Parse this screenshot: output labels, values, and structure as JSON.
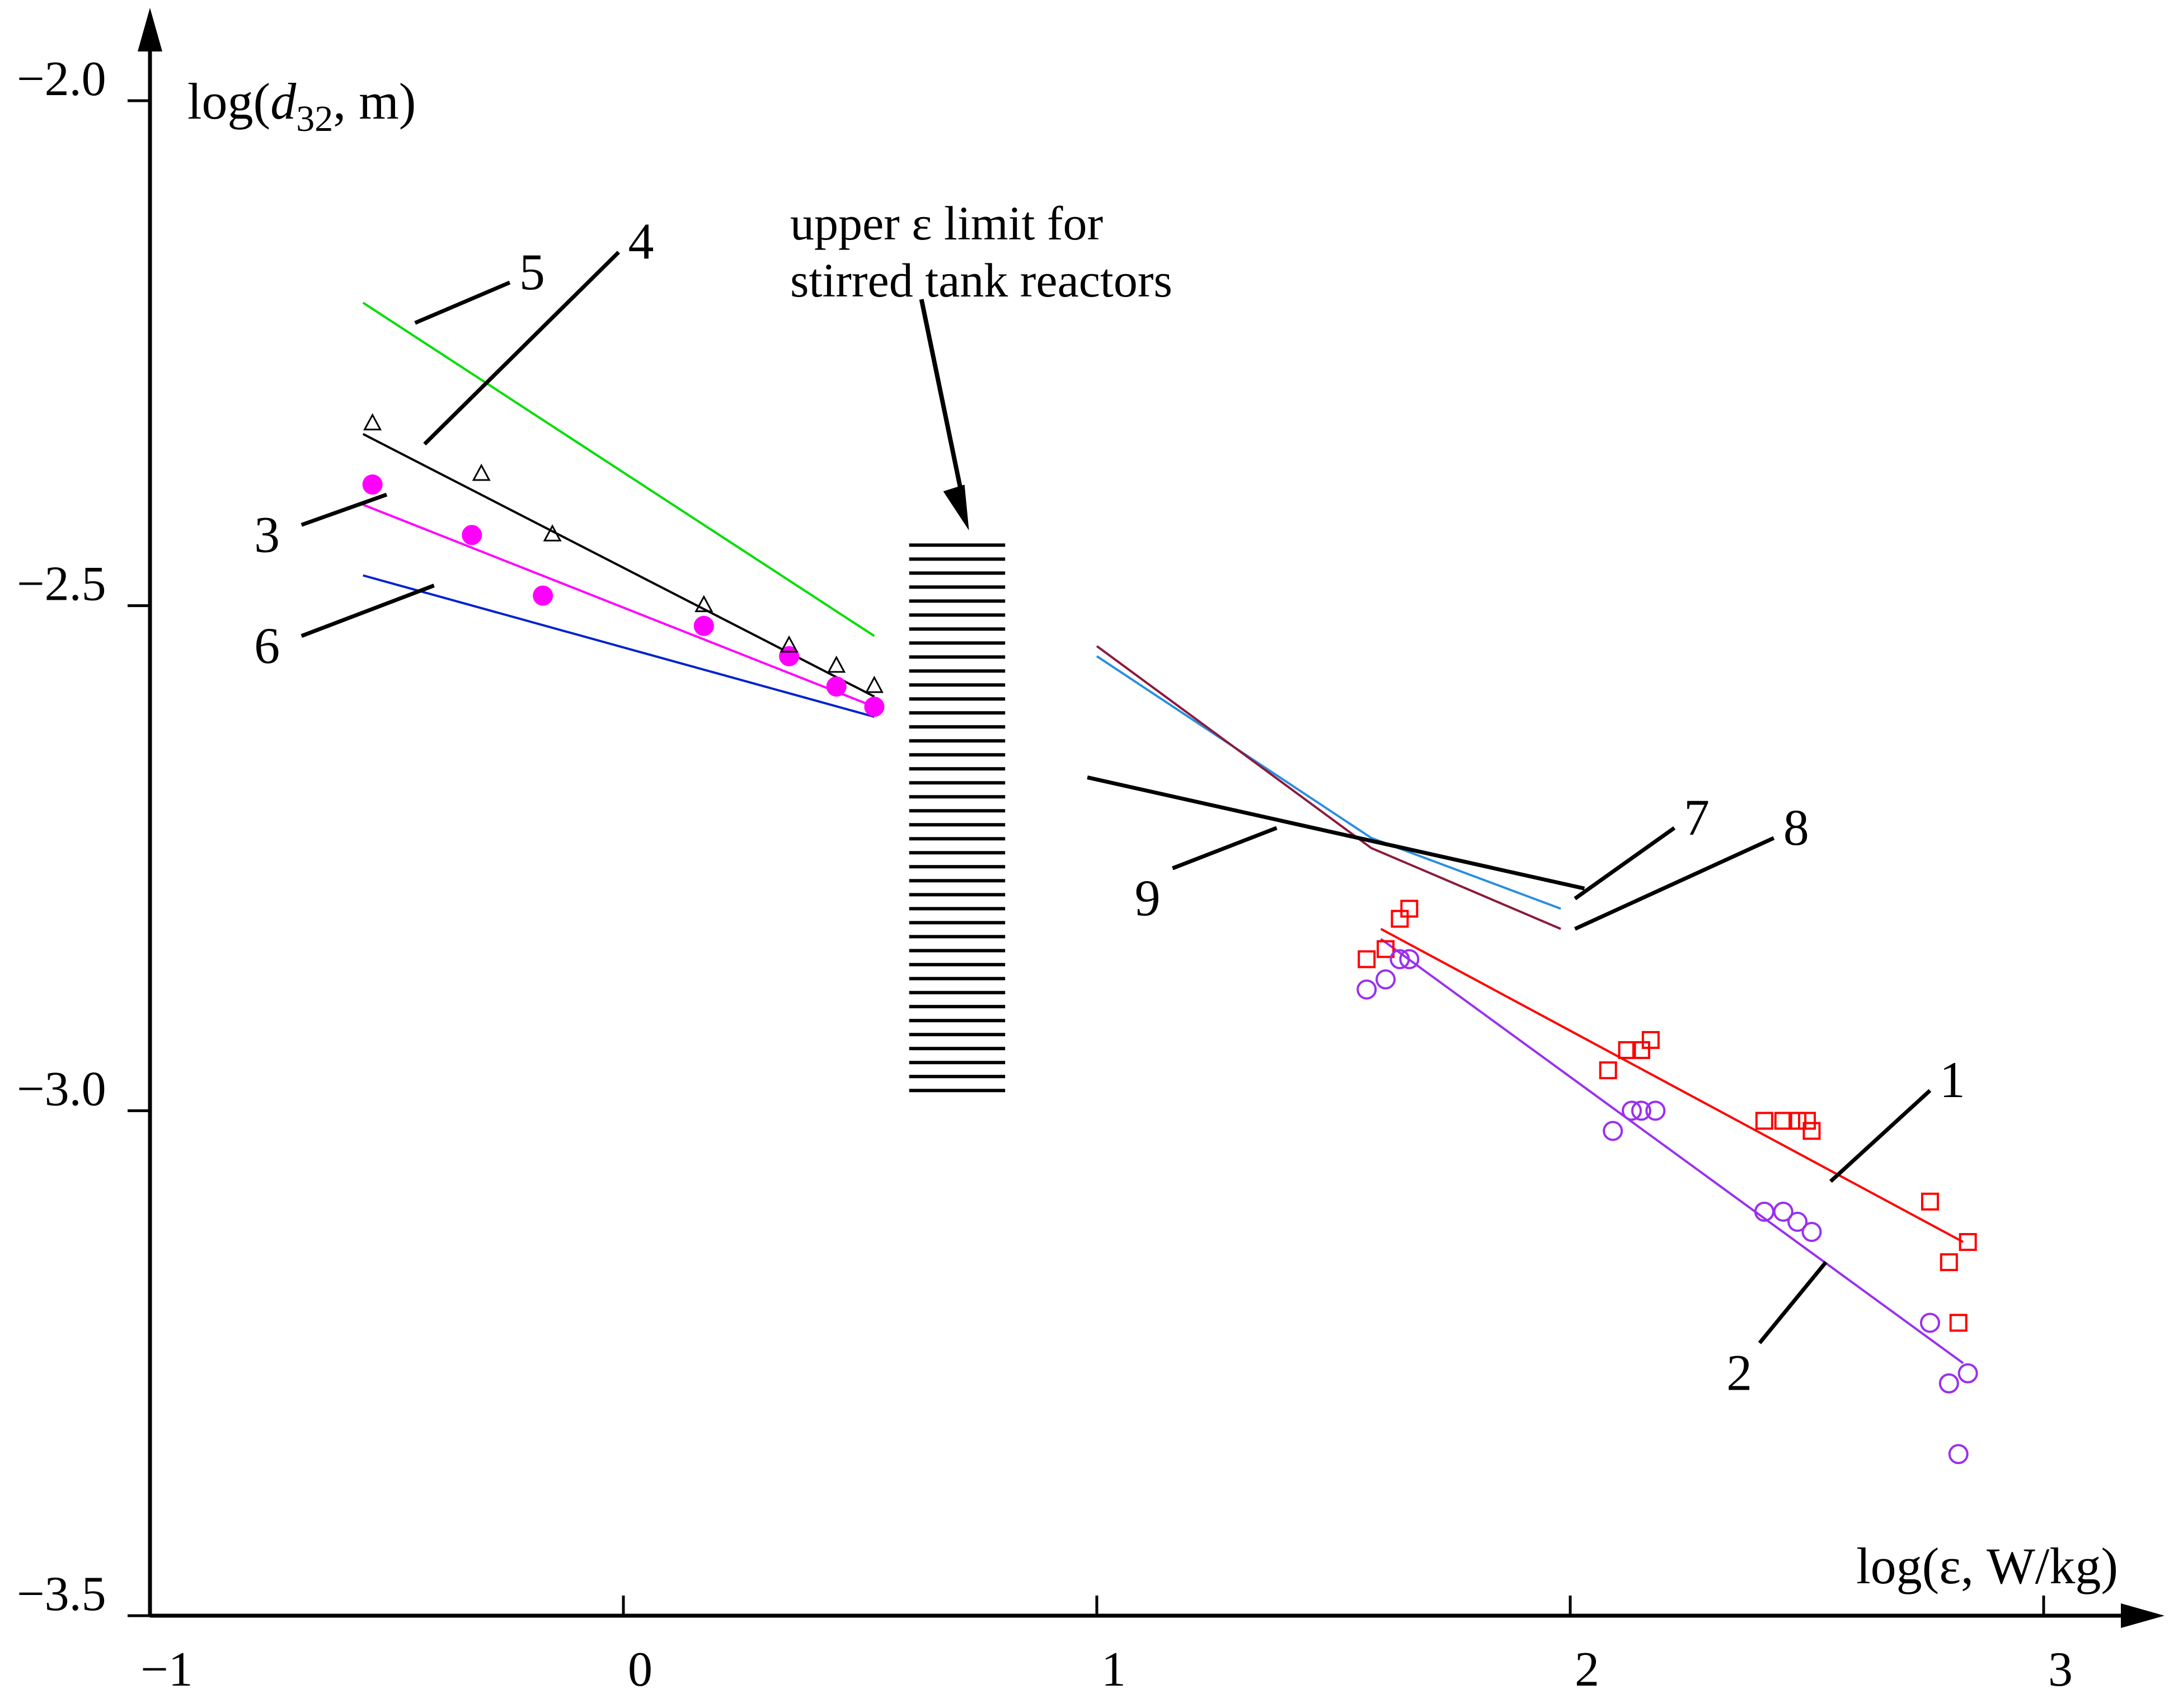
{
  "chart_data": {
    "type": "scatter",
    "title": "",
    "xlabel_text": "log(ε, W/kg)",
    "ylabel": {
      "prefix": "log(",
      "var": "d",
      "sub": "32",
      "suffix": ", m)"
    },
    "xlim": [
      -1,
      3.2
    ],
    "ylim": [
      -3.5,
      -1.95
    ],
    "x_ticks": [
      {
        "value": -1,
        "label": "−1"
      },
      {
        "value": 0,
        "label": "0"
      },
      {
        "value": 1,
        "label": "1"
      },
      {
        "value": 2,
        "label": "2"
      },
      {
        "value": 3,
        "label": "3"
      }
    ],
    "y_ticks": [
      {
        "value": -2.0,
        "label": "−2.0"
      },
      {
        "value": -2.5,
        "label": "−2.5"
      },
      {
        "value": -3.0,
        "label": "−3.0"
      },
      {
        "value": -3.5,
        "label": "−3.5"
      }
    ],
    "grid": false,
    "legend": "none",
    "annotation": {
      "lines": [
        "upper   ε   limit   for",
        "stirred tank reactors"
      ],
      "hatch": {
        "x_range": [
          0.58,
          0.83
        ],
        "y_range": [
          -2.98,
          -2.44
        ],
        "count": 40
      },
      "arrow_from": [
        0.6,
        -2.25
      ],
      "arrow_to": [
        0.73,
        -2.43
      ]
    },
    "series": [
      {
        "name": "1",
        "color": "#ff0000",
        "marker": "square-open",
        "fit": [
          [
            1.6,
            -2.82
          ],
          [
            2.83,
            -3.13
          ]
        ],
        "points": [
          [
            1.57,
            -2.85
          ],
          [
            1.61,
            -2.84
          ],
          [
            1.64,
            -2.81
          ],
          [
            1.66,
            -2.8
          ],
          [
            2.08,
            -2.96
          ],
          [
            2.12,
            -2.94
          ],
          [
            2.15,
            -2.94
          ],
          [
            2.17,
            -2.93
          ],
          [
            2.41,
            -3.01
          ],
          [
            2.45,
            -3.01
          ],
          [
            2.48,
            -3.01
          ],
          [
            2.5,
            -3.01
          ],
          [
            2.51,
            -3.02
          ],
          [
            2.76,
            -3.09
          ],
          [
            2.8,
            -3.15
          ],
          [
            2.84,
            -3.13
          ],
          [
            2.82,
            -3.21
          ]
        ]
      },
      {
        "name": "2",
        "color": "#9a2ff0",
        "marker": "circle-open",
        "fit": [
          [
            1.6,
            -2.83
          ],
          [
            2.83,
            -3.25
          ]
        ],
        "points": [
          [
            1.57,
            -2.88
          ],
          [
            1.61,
            -2.87
          ],
          [
            1.64,
            -2.85
          ],
          [
            1.66,
            -2.85
          ],
          [
            2.09,
            -3.02
          ],
          [
            2.13,
            -3.0
          ],
          [
            2.15,
            -3.0
          ],
          [
            2.18,
            -3.0
          ],
          [
            2.41,
            -3.1
          ],
          [
            2.45,
            -3.1
          ],
          [
            2.48,
            -3.11
          ],
          [
            2.51,
            -3.12
          ],
          [
            2.76,
            -3.21
          ],
          [
            2.8,
            -3.27
          ],
          [
            2.84,
            -3.26
          ],
          [
            2.82,
            -3.34
          ]
        ]
      },
      {
        "name": "3",
        "color": "#ff00ff",
        "marker": "circle-filled",
        "fit": [
          [
            -0.55,
            -2.4
          ],
          [
            0.53,
            -2.6
          ]
        ],
        "points": [
          [
            -0.53,
            -2.38
          ],
          [
            -0.32,
            -2.43
          ],
          [
            -0.17,
            -2.49
          ],
          [
            0.17,
            -2.52
          ],
          [
            0.35,
            -2.55
          ],
          [
            0.45,
            -2.58
          ],
          [
            0.53,
            -2.6
          ]
        ]
      },
      {
        "name": "4",
        "color": "#000000",
        "marker": "triangle-open",
        "fit": [
          [
            -0.55,
            -2.33
          ],
          [
            0.53,
            -2.59
          ]
        ],
        "points": [
          [
            -0.53,
            -2.32
          ],
          [
            -0.3,
            -2.37
          ],
          [
            -0.15,
            -2.43
          ],
          [
            0.17,
            -2.5
          ],
          [
            0.35,
            -2.54
          ],
          [
            0.45,
            -2.56
          ],
          [
            0.53,
            -2.58
          ]
        ]
      },
      {
        "name": "5",
        "color": "#00dd00",
        "marker": "none",
        "fit": [
          [
            -0.55,
            -2.2
          ],
          [
            0.53,
            -2.53
          ]
        ],
        "points": []
      },
      {
        "name": "6",
        "color": "#0022cc",
        "marker": "none",
        "fit": [
          [
            -0.55,
            -2.47
          ],
          [
            0.53,
            -2.61
          ]
        ],
        "points": []
      },
      {
        "name": "7",
        "color": "#2a8ee0",
        "marker": "none",
        "fit": [
          [
            1.0,
            -2.55
          ],
          [
            1.58,
            -2.73
          ],
          [
            1.98,
            -2.8
          ]
        ],
        "points": []
      },
      {
        "name": "8",
        "color": "#8b1a3a",
        "marker": "none",
        "fit": [
          [
            1.0,
            -2.54
          ],
          [
            1.58,
            -2.74
          ],
          [
            1.98,
            -2.82
          ]
        ],
        "points": []
      },
      {
        "name": "9",
        "color": "#000000",
        "marker": "none",
        "width": 7,
        "fit": [
          [
            0.98,
            -2.67
          ],
          [
            2.03,
            -2.78
          ]
        ],
        "points": []
      }
    ],
    "callouts": [
      {
        "series": "1",
        "label": "1",
        "line": [
          [
            2.55,
            -3.07
          ],
          [
            2.76,
            -2.98
          ]
        ],
        "text_at": [
          2.78,
          -2.97
        ]
      },
      {
        "series": "2",
        "label": "2",
        "line": [
          [
            2.54,
            -3.15
          ],
          [
            2.4,
            -3.23
          ]
        ],
        "text_at": [
          2.33,
          -3.26
        ]
      },
      {
        "series": "3",
        "label": "3",
        "line": [
          [
            -0.5,
            -2.39
          ],
          [
            -0.68,
            -2.42
          ]
        ],
        "text_at": [
          -0.78,
          -2.43
        ]
      },
      {
        "series": "4",
        "label": "4",
        "line": [
          [
            -0.42,
            -2.34
          ],
          [
            -0.01,
            -2.15
          ]
        ],
        "text_at": [
          0.01,
          -2.14
        ]
      },
      {
        "series": "5",
        "label": "5",
        "line": [
          [
            -0.44,
            -2.22
          ],
          [
            -0.24,
            -2.18
          ]
        ],
        "text_at": [
          -0.22,
          -2.17
        ]
      },
      {
        "series": "6",
        "label": "6",
        "line": [
          [
            -0.4,
            -2.48
          ],
          [
            -0.68,
            -2.53
          ]
        ],
        "text_at": [
          -0.78,
          -2.54
        ]
      },
      {
        "series": "7",
        "label": "7",
        "line": [
          [
            2.01,
            -2.79
          ],
          [
            2.22,
            -2.72
          ]
        ],
        "text_at": [
          2.24,
          -2.71
        ]
      },
      {
        "series": "8",
        "label": "8",
        "line": [
          [
            2.01,
            -2.82
          ],
          [
            2.43,
            -2.73
          ]
        ],
        "text_at": [
          2.45,
          -2.72
        ]
      },
      {
        "series": "9",
        "label": "9",
        "line": [
          [
            1.38,
            -2.72
          ],
          [
            1.16,
            -2.76
          ]
        ],
        "text_at": [
          1.08,
          -2.79
        ]
      }
    ]
  }
}
